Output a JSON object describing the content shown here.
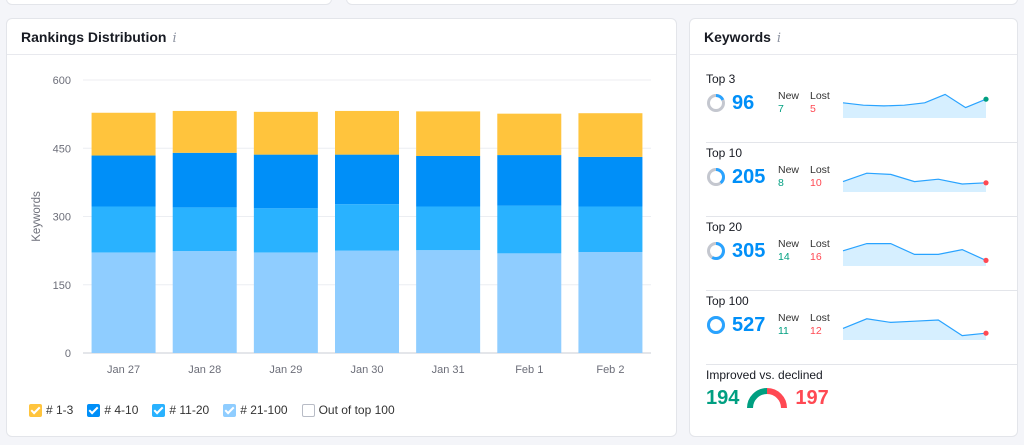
{
  "rankings": {
    "title": "Rankings Distribution",
    "info_icon": "i",
    "legend": [
      {
        "label": "# 1-3",
        "color": "#ffc43d",
        "checked": true
      },
      {
        "label": "# 4-10",
        "color": "#008ff8",
        "checked": true
      },
      {
        "label": "# 11-20",
        "color": "#29b2ff",
        "checked": true
      },
      {
        "label": "# 21-100",
        "color": "#8fcdff",
        "checked": true
      },
      {
        "label": "Out of top 100",
        "color": "#ffffff",
        "checked": false
      }
    ]
  },
  "chart_data": {
    "type": "bar",
    "stacked": true,
    "categories": [
      "Jan 27",
      "Jan 28",
      "Jan 29",
      "Jan 30",
      "Jan 31",
      "Feb 1",
      "Feb 2"
    ],
    "ylabel": "Keywords",
    "ylim": [
      0,
      600
    ],
    "yticks": [
      0,
      150,
      300,
      450,
      600
    ],
    "grid": true,
    "series": [
      {
        "name": "# 21-100",
        "color": "#8fcdff",
        "values": [
          221,
          224,
          221,
          225,
          226,
          219,
          222
        ]
      },
      {
        "name": "# 11-20",
        "color": "#29b2ff",
        "values": [
          101,
          96,
          97,
          102,
          96,
          105,
          100
        ]
      },
      {
        "name": "# 4-10",
        "color": "#008ff8",
        "values": [
          112,
          120,
          118,
          109,
          111,
          111,
          109
        ]
      },
      {
        "name": "# 1-3",
        "color": "#ffc43d",
        "values": [
          94,
          92,
          94,
          96,
          98,
          91,
          96
        ]
      }
    ]
  },
  "keywords": {
    "title": "Keywords",
    "info_icon": "i",
    "new_label": "New",
    "lost_label": "Lost",
    "items": [
      {
        "title": "Top 3",
        "value": "96",
        "new": "7",
        "lost": "5",
        "ring_fraction": 0.18,
        "spark": [
          0.55,
          0.45,
          0.42,
          0.45,
          0.55,
          0.9,
          0.35,
          0.7
        ],
        "dot": "#009f81"
      },
      {
        "title": "Top 10",
        "value": "205",
        "new": "8",
        "lost": "10",
        "ring_fraction": 0.39,
        "spark": [
          0.35,
          0.7,
          0.65,
          0.35,
          0.45,
          0.25,
          0.3
        ],
        "dot": "#ff4953"
      },
      {
        "title": "Top 20",
        "value": "305",
        "new": "14",
        "lost": "16",
        "ring_fraction": 0.58,
        "spark": [
          0.55,
          0.85,
          0.85,
          0.4,
          0.4,
          0.6,
          0.15
        ],
        "dot": "#ff4953"
      },
      {
        "title": "Top 100",
        "value": "527",
        "new": "11",
        "lost": "12",
        "ring_fraction": 1.0,
        "spark": [
          0.4,
          0.8,
          0.65,
          0.7,
          0.75,
          0.1,
          0.2
        ],
        "dot": "#ff4953"
      }
    ],
    "improved": {
      "title": "Improved vs. declined",
      "improved": "194",
      "declined": "197",
      "improved_color": "#009f81",
      "declined_color": "#ff4953"
    }
  }
}
